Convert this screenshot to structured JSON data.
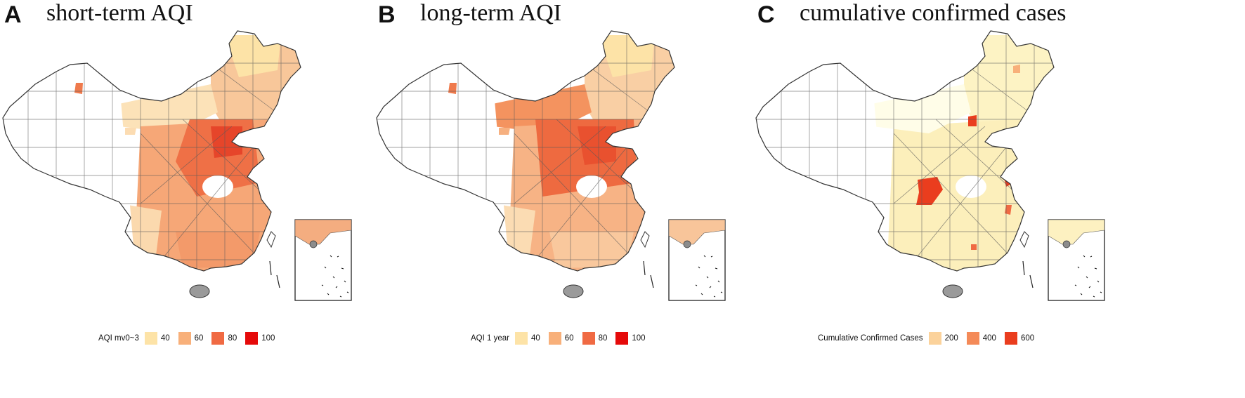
{
  "panels": [
    {
      "letter": "A",
      "title": "short-term AQI",
      "legend": {
        "title": "AQI mv0~3",
        "items": [
          {
            "label": "40",
            "color": "#fde3a7"
          },
          {
            "label": "60",
            "color": "#f8b07a"
          },
          {
            "label": "80",
            "color": "#f06a43"
          },
          {
            "label": "100",
            "color": "#e50a0a"
          }
        ]
      }
    },
    {
      "letter": "B",
      "title": "long-term AQI",
      "legend": {
        "title": "AQI 1 year",
        "items": [
          {
            "label": "40",
            "color": "#fde3a7"
          },
          {
            "label": "60",
            "color": "#f8b07a"
          },
          {
            "label": "80",
            "color": "#f06a43"
          },
          {
            "label": "100",
            "color": "#e50a0a"
          }
        ]
      }
    },
    {
      "letter": "C",
      "title": "cumulative confirmed cases",
      "legend": {
        "title": "Cumulative Confirmed Cases",
        "items": [
          {
            "label": "200",
            "color": "#fbd29b"
          },
          {
            "label": "400",
            "color": "#f48a58"
          },
          {
            "label": "600",
            "color": "#ea3d1e"
          }
        ]
      }
    }
  ]
}
